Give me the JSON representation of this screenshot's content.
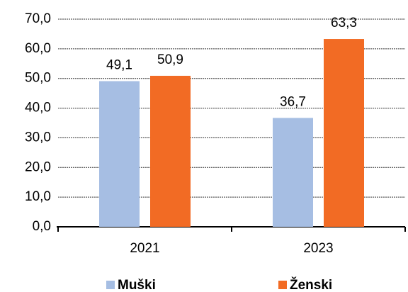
{
  "chart_data": {
    "type": "bar",
    "categories": [
      "2021",
      "2023"
    ],
    "series": [
      {
        "name": "Muški",
        "color": "#a6bee3",
        "values": [
          49.1,
          36.7
        ],
        "value_labels": [
          "49,1",
          "36,7"
        ]
      },
      {
        "name": "Ženski",
        "color": "#f26b24",
        "values": [
          50.9,
          63.3
        ],
        "value_labels": [
          "50,9",
          "63,3"
        ]
      }
    ],
    "ylim": [
      0,
      70
    ],
    "yticks": [
      {
        "value": 0,
        "label": "0,0"
      },
      {
        "value": 10,
        "label": "10,0"
      },
      {
        "value": 20,
        "label": "20,0"
      },
      {
        "value": 30,
        "label": "30,0"
      },
      {
        "value": 40,
        "label": "40,0"
      },
      {
        "value": 50,
        "label": "50,0"
      },
      {
        "value": 60,
        "label": "60,0"
      },
      {
        "value": 70,
        "label": "70,0"
      }
    ],
    "grid": true
  }
}
